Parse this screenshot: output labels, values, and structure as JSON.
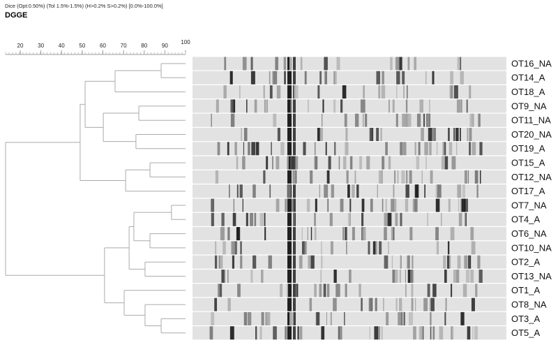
{
  "header": {
    "method": "Dice (Opt:0.50%) (Tol 1.5%-1.5%) (H>0.2% S>0.2%) [0.0%-100.0%]",
    "title": "DGGE"
  },
  "axis": {
    "ticks": [
      20,
      30,
      40,
      50,
      60,
      70,
      80,
      90,
      100
    ]
  },
  "lanes": [
    "OT16_NA",
    "OT14_A",
    "OT18_A",
    "OT9_NA",
    "OT11_NA",
    "OT20_NA",
    "OT19_A",
    "OT15_A",
    "OT12_NA",
    "OT17_A",
    "OT7_NA",
    "OT4_A",
    "OT6_NA",
    "OT10_NA",
    "OT2_A",
    "OT13_NA",
    "OT1_A",
    "OT8_NA",
    "OT3_A",
    "OT5_A"
  ],
  "tree": {
    "similarity": 12.9,
    "children": [
      {
        "similarity": 49.0,
        "children": [
          {
            "similarity": 51.4,
            "children": [
              {
                "similarity": 65.9,
                "children": [
                  {
                    "similarity": 88.2,
                    "children": [
                      0,
                      1
                    ]
                  },
                  2
                ]
              },
              {
                "similarity": 60.2,
                "children": [
                  {
                    "similarity": 77.4,
                    "children": [
                      3,
                      4
                    ]
                  },
                  {
                    "similarity": 76.0,
                    "children": [
                      5,
                      6
                    ]
                  }
                ]
              }
            ]
          },
          {
            "similarity": 71.0,
            "children": [
              {
                "similarity": 82.8,
                "children": [
                  7,
                  8
                ]
              },
              9
            ]
          }
        ]
      },
      {
        "similarity": 60.8,
        "children": [
          {
            "similarity": 72.7,
            "children": [
              {
                "similarity": 75.0,
                "children": [
                  {
                    "similarity": 93.2,
                    "children": [
                      10,
                      11
                    ]
                  },
                  {
                    "similarity": 82.8,
                    "children": [
                      12,
                      13
                    ]
                  }
                ]
              },
              {
                "similarity": 80.4,
                "children": [
                  14,
                  15
                ]
              }
            ]
          },
          {
            "similarity": 70.3,
            "children": [
              16,
              {
                "similarity": 80.4,
                "children": [
                  17,
                  {
                    "similarity": 88.2,
                    "children": [
                      18,
                      19
                    ]
                  }
                ]
              }
            ]
          }
        ]
      }
    ]
  }
}
